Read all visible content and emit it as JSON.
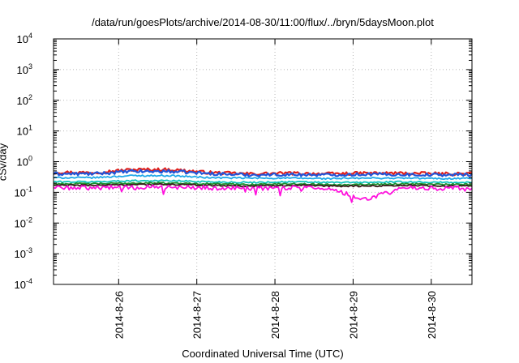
{
  "chart_data": {
    "type": "line",
    "title": "/data/run/goesPlots/archive/2014-08-30/11:00/flux/../bryn/5daysMoon.plot",
    "xlabel": "Coordinated Universal Time (UTC)",
    "ylabel": "cSv/day",
    "yscale": "log",
    "ylim": [
      0.0001,
      10000
    ],
    "xlim": [
      "2014-08-25 04:00",
      "2014-08-30 12:30"
    ],
    "grid": true,
    "y_ticks": [
      {
        "base": "10",
        "exp": "-4"
      },
      {
        "base": "10",
        "exp": "-3"
      },
      {
        "base": "10",
        "exp": "-2"
      },
      {
        "base": "10",
        "exp": "-1"
      },
      {
        "base": "10",
        "exp": "0"
      },
      {
        "base": "10",
        "exp": "1"
      },
      {
        "base": "10",
        "exp": "2"
      },
      {
        "base": "10",
        "exp": "3"
      },
      {
        "base": "10",
        "exp": "4"
      }
    ],
    "x_ticks": [
      "2014-8-26",
      "2014-8-27",
      "2014-8-28",
      "2014-8-29",
      "2014-8-30"
    ],
    "x": [
      "2014-08-25 04:00",
      "2014-08-25 16:00",
      "2014-08-26 04:00",
      "2014-08-26 16:00",
      "2014-08-27 04:00",
      "2014-08-27 16:00",
      "2014-08-28 04:00",
      "2014-08-28 16:00",
      "2014-08-29 04:00",
      "2014-08-29 16:00",
      "2014-08-30 04:00",
      "2014-08-30 12:30"
    ],
    "series": [
      {
        "color": "#e0201b",
        "values": [
          0.45,
          0.44,
          0.55,
          0.55,
          0.44,
          0.4,
          0.42,
          0.4,
          0.42,
          0.42,
          0.4,
          0.41
        ]
      },
      {
        "color": "#2255d8",
        "values": [
          0.4,
          0.4,
          0.48,
          0.48,
          0.41,
          0.37,
          0.38,
          0.37,
          0.39,
          0.38,
          0.37,
          0.38
        ]
      },
      {
        "color": "#1fa8e8",
        "values": [
          0.3,
          0.3,
          0.35,
          0.35,
          0.3,
          0.29,
          0.29,
          0.28,
          0.29,
          0.29,
          0.28,
          0.29
        ]
      },
      {
        "color": "#11c5bd",
        "values": [
          0.22,
          0.22,
          0.24,
          0.24,
          0.22,
          0.21,
          0.22,
          0.21,
          0.21,
          0.22,
          0.21,
          0.21
        ]
      },
      {
        "color": "#1d8f2e",
        "values": [
          0.19,
          0.19,
          0.2,
          0.2,
          0.19,
          0.18,
          0.19,
          0.18,
          0.18,
          0.19,
          0.18,
          0.18
        ]
      },
      {
        "color": "#3a1a1a",
        "values": [
          0.17,
          0.17,
          0.18,
          0.18,
          0.17,
          0.16,
          0.17,
          0.16,
          0.16,
          0.17,
          0.16,
          0.16
        ]
      },
      {
        "color": "#ff11dd",
        "values": [
          0.14,
          0.14,
          0.15,
          0.15,
          0.14,
          0.135,
          0.14,
          0.135,
          0.06,
          0.14,
          0.135,
          0.14
        ]
      }
    ]
  }
}
